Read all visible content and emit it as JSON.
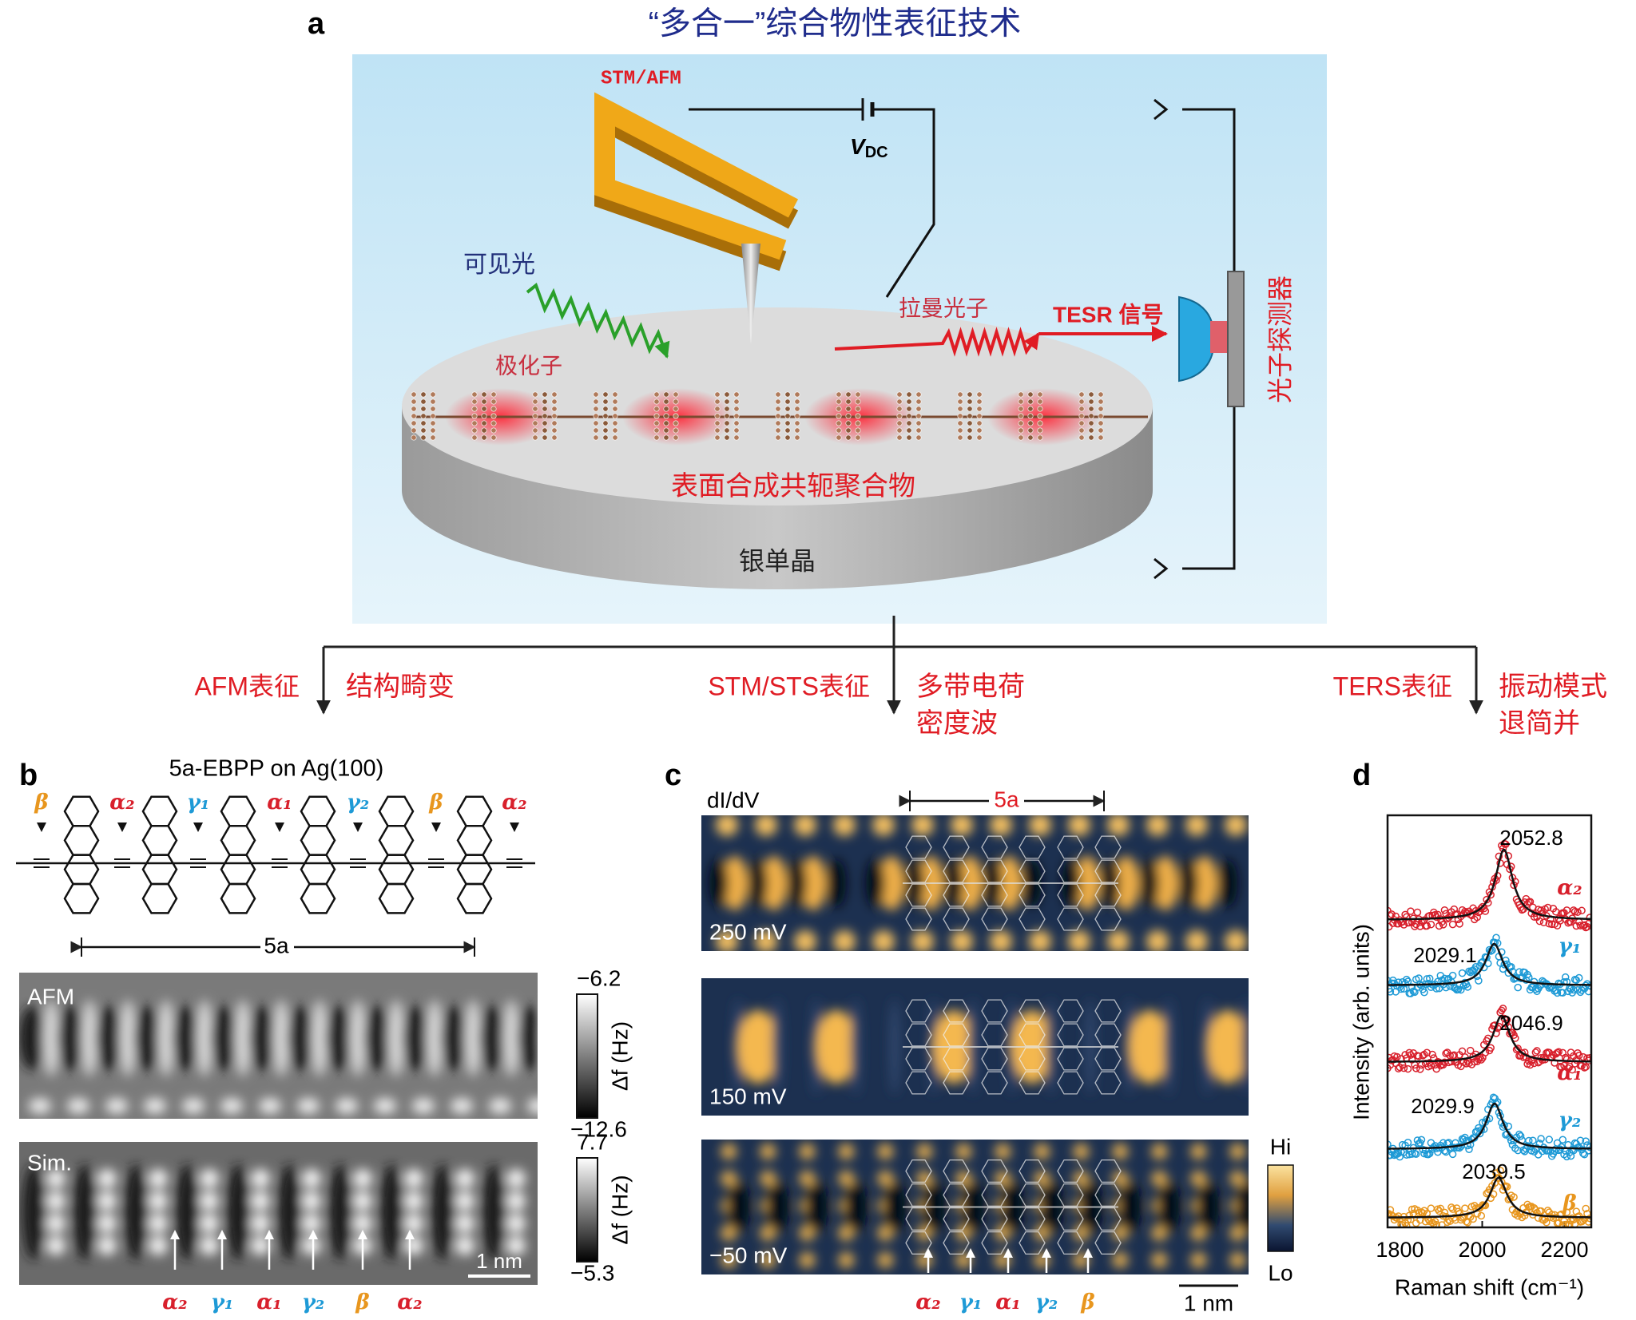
{
  "panel_a": {
    "label": "a",
    "title": "“多合一”综合物性表征技术",
    "probe": "STM/AFM",
    "bias": "V",
    "bias_sub": "DC",
    "light": "可见光",
    "polariton": "极化子",
    "raman": "拉曼光子",
    "signal": "TESR 信号",
    "detector": "光子探测器",
    "polymer": "表面合成共轭聚合物",
    "substrate": "银单晶",
    "branches": [
      {
        "method": "AFM表征",
        "result": [
          "结构畸变"
        ]
      },
      {
        "method": "STM/STS表征",
        "result": [
          "多带电荷",
          "密度波"
        ]
      },
      {
        "method": "TERS表征",
        "result": [
          "振动模式",
          "退简并"
        ]
      }
    ]
  },
  "panel_b": {
    "label": "b",
    "title": "5a-EBPP on Ag(100)",
    "period": "5a",
    "sites_top": [
      {
        "name": "β",
        "color": "#e8961e"
      },
      {
        "name": "α₂",
        "color": "#d8202c"
      },
      {
        "name": "γ₁",
        "color": "#1e9ad6"
      },
      {
        "name": "α₁",
        "color": "#d8202c"
      },
      {
        "name": "γ₂",
        "color": "#1e9ad6"
      },
      {
        "name": "β",
        "color": "#e8961e"
      },
      {
        "name": "α₂",
        "color": "#d8202c"
      }
    ],
    "afm": {
      "label": "AFM",
      "max": "−6.2",
      "min": "−12.6",
      "unit": "Δf (Hz)"
    },
    "sim": {
      "label": "Sim.",
      "max": "7.7",
      "min": "−5.3",
      "unit": "Δf (Hz)",
      "scale": "1 nm"
    },
    "sites_bottom": [
      {
        "name": "α₂",
        "color": "#d8202c"
      },
      {
        "name": "γ₁",
        "color": "#1e9ad6"
      },
      {
        "name": "α₁",
        "color": "#d8202c"
      },
      {
        "name": "γ₂",
        "color": "#1e9ad6"
      },
      {
        "name": "β",
        "color": "#e8961e"
      },
      {
        "name": "α₂",
        "color": "#d8202c"
      }
    ]
  },
  "panel_c": {
    "label": "c",
    "quantity": "dI/dV",
    "period": "5a",
    "maps": [
      {
        "bias": "250 mV"
      },
      {
        "bias": "150 mV"
      },
      {
        "bias": "−50 mV"
      }
    ],
    "colorbar": {
      "high": "Hi",
      "low": "Lo"
    },
    "scale": "1 nm",
    "sites": [
      {
        "name": "α₂",
        "color": "#d8202c"
      },
      {
        "name": "γ₁",
        "color": "#1e9ad6"
      },
      {
        "name": "α₁",
        "color": "#d8202c"
      },
      {
        "name": "γ₂",
        "color": "#1e9ad6"
      },
      {
        "name": "β",
        "color": "#e8961e"
      }
    ]
  },
  "panel_d": {
    "label": "d",
    "xlabel": "Raman shift (cm⁻¹)",
    "ylabel": "Intensity (arb. units)",
    "xlim": [
      1770,
      2265
    ],
    "xticks": [
      1800,
      2000,
      2200
    ],
    "spectra": [
      {
        "name": "α₂",
        "color": "#d8202c",
        "peak": 2052.8
      },
      {
        "name": "γ₁",
        "color": "#1e9ad6",
        "peak": 2029.1
      },
      {
        "name": "α₁",
        "color": "#d8202c",
        "peak": 2046.9
      },
      {
        "name": "γ₂",
        "color": "#1e9ad6",
        "peak": 2029.9
      },
      {
        "name": "β",
        "color": "#e8961e",
        "peak": 2039.5
      }
    ]
  }
}
